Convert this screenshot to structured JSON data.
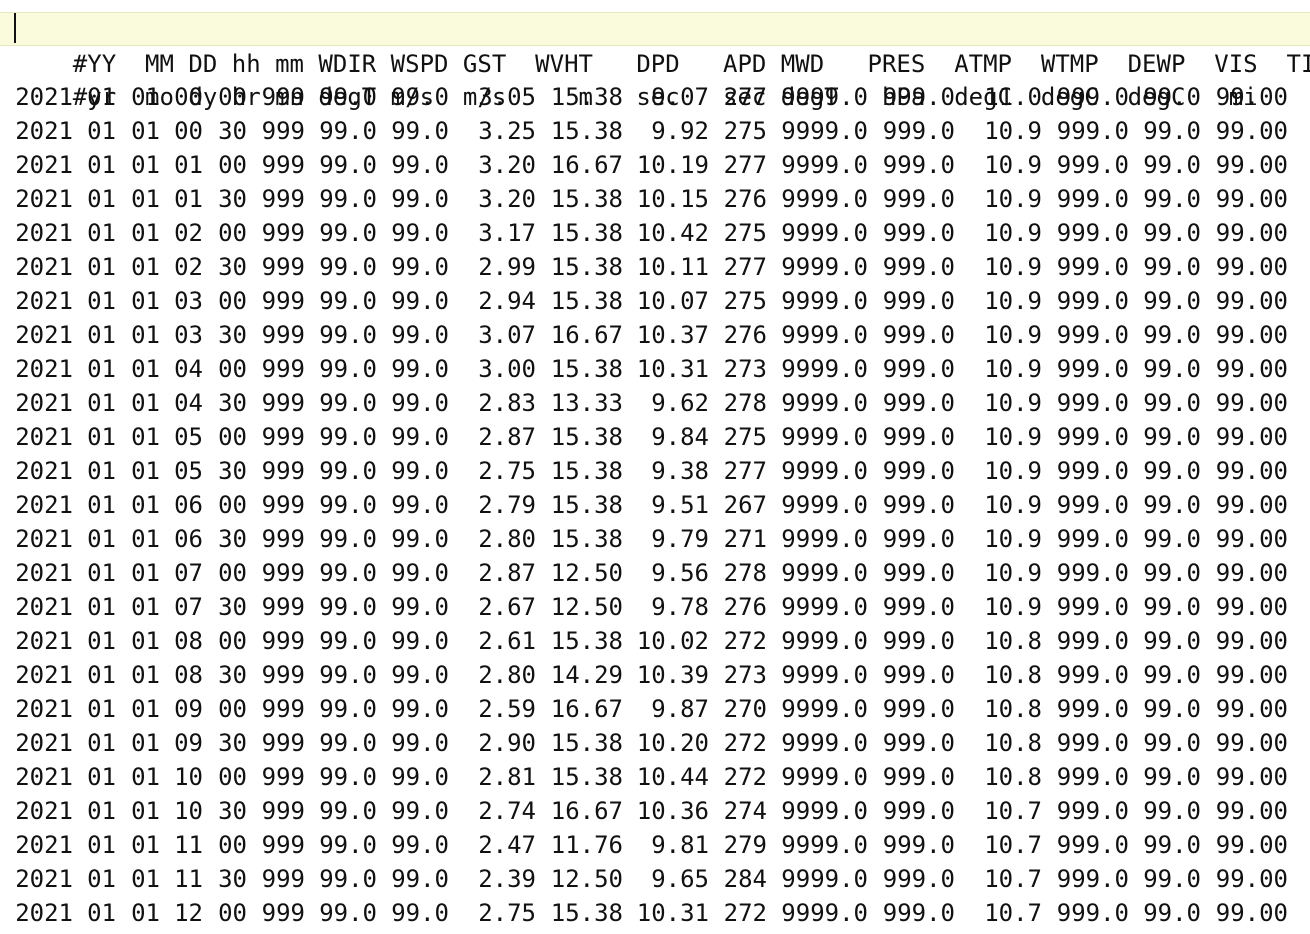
{
  "file": {
    "header_line": "#YY  MM DD hh mm WDIR WSPD GST  WVHT   DPD   APD MWD   PRES  ATMP  WTMP  DEWP  VIS  TIDE",
    "units_line": "#yr  mo dy hr mn degT m/s  m/s     m   sec   sec degT   hPa  degC  degC  degC   mi    ft",
    "rows": [
      [
        "2021",
        "01",
        "01",
        "00",
        "00",
        "999",
        "99.0",
        "99.0",
        "3.05",
        "15.38",
        "9.07",
        "277",
        "9999.0",
        "999.0",
        "11.0",
        "999.0",
        "99.0",
        "99.00"
      ],
      [
        "2021",
        "01",
        "01",
        "00",
        "30",
        "999",
        "99.0",
        "99.0",
        "3.25",
        "15.38",
        "9.92",
        "275",
        "9999.0",
        "999.0",
        "10.9",
        "999.0",
        "99.0",
        "99.00"
      ],
      [
        "2021",
        "01",
        "01",
        "01",
        "00",
        "999",
        "99.0",
        "99.0",
        "3.20",
        "16.67",
        "10.19",
        "277",
        "9999.0",
        "999.0",
        "10.9",
        "999.0",
        "99.0",
        "99.00"
      ],
      [
        "2021",
        "01",
        "01",
        "01",
        "30",
        "999",
        "99.0",
        "99.0",
        "3.20",
        "15.38",
        "10.15",
        "276",
        "9999.0",
        "999.0",
        "10.9",
        "999.0",
        "99.0",
        "99.00"
      ],
      [
        "2021",
        "01",
        "01",
        "02",
        "00",
        "999",
        "99.0",
        "99.0",
        "3.17",
        "15.38",
        "10.42",
        "275",
        "9999.0",
        "999.0",
        "10.9",
        "999.0",
        "99.0",
        "99.00"
      ],
      [
        "2021",
        "01",
        "01",
        "02",
        "30",
        "999",
        "99.0",
        "99.0",
        "2.99",
        "15.38",
        "10.11",
        "277",
        "9999.0",
        "999.0",
        "10.9",
        "999.0",
        "99.0",
        "99.00"
      ],
      [
        "2021",
        "01",
        "01",
        "03",
        "00",
        "999",
        "99.0",
        "99.0",
        "2.94",
        "15.38",
        "10.07",
        "275",
        "9999.0",
        "999.0",
        "10.9",
        "999.0",
        "99.0",
        "99.00"
      ],
      [
        "2021",
        "01",
        "01",
        "03",
        "30",
        "999",
        "99.0",
        "99.0",
        "3.07",
        "16.67",
        "10.37",
        "276",
        "9999.0",
        "999.0",
        "10.9",
        "999.0",
        "99.0",
        "99.00"
      ],
      [
        "2021",
        "01",
        "01",
        "04",
        "00",
        "999",
        "99.0",
        "99.0",
        "3.00",
        "15.38",
        "10.31",
        "273",
        "9999.0",
        "999.0",
        "10.9",
        "999.0",
        "99.0",
        "99.00"
      ],
      [
        "2021",
        "01",
        "01",
        "04",
        "30",
        "999",
        "99.0",
        "99.0",
        "2.83",
        "13.33",
        "9.62",
        "278",
        "9999.0",
        "999.0",
        "10.9",
        "999.0",
        "99.0",
        "99.00"
      ],
      [
        "2021",
        "01",
        "01",
        "05",
        "00",
        "999",
        "99.0",
        "99.0",
        "2.87",
        "15.38",
        "9.84",
        "275",
        "9999.0",
        "999.0",
        "10.9",
        "999.0",
        "99.0",
        "99.00"
      ],
      [
        "2021",
        "01",
        "01",
        "05",
        "30",
        "999",
        "99.0",
        "99.0",
        "2.75",
        "15.38",
        "9.38",
        "277",
        "9999.0",
        "999.0",
        "10.9",
        "999.0",
        "99.0",
        "99.00"
      ],
      [
        "2021",
        "01",
        "01",
        "06",
        "00",
        "999",
        "99.0",
        "99.0",
        "2.79",
        "15.38",
        "9.51",
        "267",
        "9999.0",
        "999.0",
        "10.9",
        "999.0",
        "99.0",
        "99.00"
      ],
      [
        "2021",
        "01",
        "01",
        "06",
        "30",
        "999",
        "99.0",
        "99.0",
        "2.80",
        "15.38",
        "9.79",
        "271",
        "9999.0",
        "999.0",
        "10.9",
        "999.0",
        "99.0",
        "99.00"
      ],
      [
        "2021",
        "01",
        "01",
        "07",
        "00",
        "999",
        "99.0",
        "99.0",
        "2.87",
        "12.50",
        "9.56",
        "278",
        "9999.0",
        "999.0",
        "10.9",
        "999.0",
        "99.0",
        "99.00"
      ],
      [
        "2021",
        "01",
        "01",
        "07",
        "30",
        "999",
        "99.0",
        "99.0",
        "2.67",
        "12.50",
        "9.78",
        "276",
        "9999.0",
        "999.0",
        "10.9",
        "999.0",
        "99.0",
        "99.00"
      ],
      [
        "2021",
        "01",
        "01",
        "08",
        "00",
        "999",
        "99.0",
        "99.0",
        "2.61",
        "15.38",
        "10.02",
        "272",
        "9999.0",
        "999.0",
        "10.8",
        "999.0",
        "99.0",
        "99.00"
      ],
      [
        "2021",
        "01",
        "01",
        "08",
        "30",
        "999",
        "99.0",
        "99.0",
        "2.80",
        "14.29",
        "10.39",
        "273",
        "9999.0",
        "999.0",
        "10.8",
        "999.0",
        "99.0",
        "99.00"
      ],
      [
        "2021",
        "01",
        "01",
        "09",
        "00",
        "999",
        "99.0",
        "99.0",
        "2.59",
        "16.67",
        "9.87",
        "270",
        "9999.0",
        "999.0",
        "10.8",
        "999.0",
        "99.0",
        "99.00"
      ],
      [
        "2021",
        "01",
        "01",
        "09",
        "30",
        "999",
        "99.0",
        "99.0",
        "2.90",
        "15.38",
        "10.20",
        "272",
        "9999.0",
        "999.0",
        "10.8",
        "999.0",
        "99.0",
        "99.00"
      ],
      [
        "2021",
        "01",
        "01",
        "10",
        "00",
        "999",
        "99.0",
        "99.0",
        "2.81",
        "15.38",
        "10.44",
        "272",
        "9999.0",
        "999.0",
        "10.8",
        "999.0",
        "99.0",
        "99.00"
      ],
      [
        "2021",
        "01",
        "01",
        "10",
        "30",
        "999",
        "99.0",
        "99.0",
        "2.74",
        "16.67",
        "10.36",
        "274",
        "9999.0",
        "999.0",
        "10.7",
        "999.0",
        "99.0",
        "99.00"
      ],
      [
        "2021",
        "01",
        "01",
        "11",
        "00",
        "999",
        "99.0",
        "99.0",
        "2.47",
        "11.76",
        "9.81",
        "279",
        "9999.0",
        "999.0",
        "10.7",
        "999.0",
        "99.0",
        "99.00"
      ],
      [
        "2021",
        "01",
        "01",
        "11",
        "30",
        "999",
        "99.0",
        "99.0",
        "2.39",
        "12.50",
        "9.65",
        "284",
        "9999.0",
        "999.0",
        "10.7",
        "999.0",
        "99.0",
        "99.00"
      ],
      [
        "2021",
        "01",
        "01",
        "12",
        "00",
        "999",
        "99.0",
        "99.0",
        "2.75",
        "15.38",
        "10.31",
        "272",
        "9999.0",
        "999.0",
        "10.7",
        "999.0",
        "99.0",
        "99.00"
      ]
    ]
  }
}
